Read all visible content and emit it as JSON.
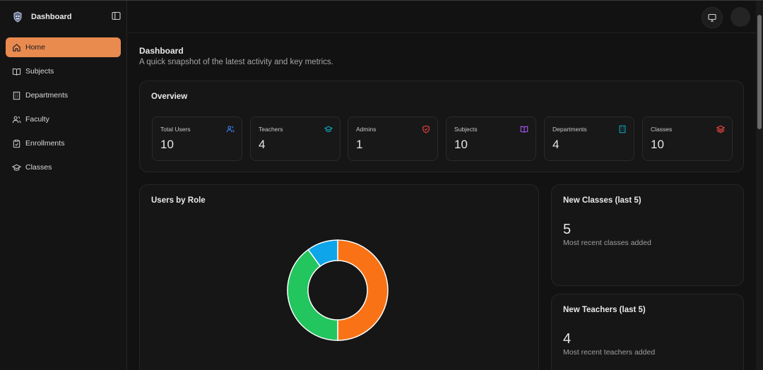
{
  "brand": {
    "title": "Dashboard"
  },
  "sidebar": {
    "items": [
      {
        "label": "Home",
        "icon": "home-icon",
        "active": true
      },
      {
        "label": "Subjects",
        "icon": "book-icon"
      },
      {
        "label": "Departments",
        "icon": "building-icon"
      },
      {
        "label": "Faculty",
        "icon": "users-icon"
      },
      {
        "label": "Enrollments",
        "icon": "clipboard-icon"
      },
      {
        "label": "Classes",
        "icon": "graduation-cap-icon"
      }
    ]
  },
  "header": {
    "title": "Dashboard",
    "subtitle": "A quick snapshot of the latest activity and key metrics."
  },
  "overview": {
    "title": "Overview",
    "stats": [
      {
        "label": "Total Users",
        "value": "10",
        "icon": "users-icon",
        "color": "#3b82f6"
      },
      {
        "label": "Teachers",
        "value": "4",
        "icon": "graduation-cap-icon",
        "color": "#0ea5b7"
      },
      {
        "label": "Admins",
        "value": "1",
        "icon": "shield-icon",
        "color": "#ef4444"
      },
      {
        "label": "Subjects",
        "value": "10",
        "icon": "book-icon",
        "color": "#a855f7"
      },
      {
        "label": "Departments",
        "value": "4",
        "icon": "building-icon",
        "color": "#0ea5b7"
      },
      {
        "label": "Classes",
        "value": "10",
        "icon": "layers-icon",
        "color": "#ef4444"
      }
    ]
  },
  "roles_card": {
    "title": "Users by Role"
  },
  "chart_data": {
    "type": "pie",
    "donut": true,
    "slices": [
      {
        "value": 5,
        "color": "#f97316"
      },
      {
        "value": 4,
        "color": "#22c55e"
      },
      {
        "value": 1,
        "color": "#0ea5e9"
      }
    ]
  },
  "new_classes": {
    "title": "New Classes (last 5)",
    "count": "5",
    "caption": "Most recent classes added"
  },
  "new_teachers": {
    "title": "New Teachers (last 5)",
    "count": "4",
    "caption": "Most recent teachers added"
  },
  "colors": {
    "accent": "#e98a4f",
    "background": "#121212"
  }
}
